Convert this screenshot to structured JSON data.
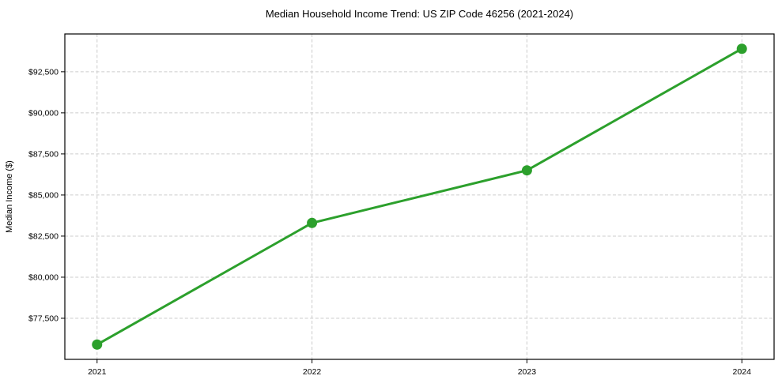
{
  "chart_data": {
    "type": "line",
    "title": "Median Household Income Trend: US ZIP Code 46256 (2021-2024)",
    "xlabel": "",
    "ylabel": "Median Income ($)",
    "x": [
      2021,
      2022,
      2023,
      2024
    ],
    "x_tick_labels": [
      "2021",
      "2022",
      "2023",
      "2024"
    ],
    "values": [
      75900,
      83300,
      86500,
      93900
    ],
    "y_ticks": [
      77500,
      80000,
      82500,
      85000,
      87500,
      90000,
      92500
    ],
    "y_tick_labels": [
      "$77,500",
      "$80,000",
      "$82,500",
      "$85,000",
      "$87,500",
      "$90,000",
      "$92,500"
    ],
    "xlim": [
      2020.85,
      2024.15
    ],
    "ylim": [
      75000,
      94800
    ],
    "grid": true,
    "grid_style": "dashed",
    "legend": "none",
    "line_color": "#2ca02c",
    "marker": "circle",
    "grid_color": "#cccccc",
    "axis_color": "#000000",
    "text_color": "#000000",
    "background": "#ffffff"
  }
}
